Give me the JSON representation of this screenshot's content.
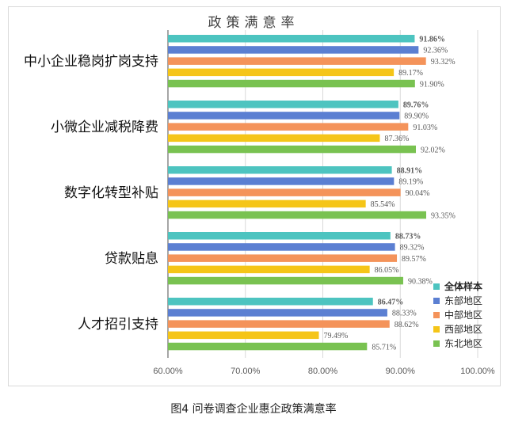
{
  "caption": "图4  问卷调查企业惠企政策满意率",
  "chart_data": {
    "type": "bar",
    "orientation": "horizontal",
    "title": "政策满意率",
    "categories": [
      "中小企业稳岗扩岗支持",
      "小微企业减税降费",
      "数字化转型补贴",
      "贷款贴息",
      "人才招引支持"
    ],
    "series": [
      {
        "name": "全体样本",
        "color": "#4dc4c0",
        "values": [
          91.86,
          89.76,
          88.91,
          88.73,
          86.47
        ],
        "labels": [
          "91.86%",
          "89.76%",
          "88.91%",
          "88.73%",
          "86.47%"
        ]
      },
      {
        "name": "东部地区",
        "color": "#5b7fd2",
        "values": [
          92.36,
          89.9,
          89.19,
          89.32,
          88.33
        ],
        "labels": [
          "92.36%",
          "89.90%",
          "89.19%",
          "89.32%",
          "88.33%"
        ]
      },
      {
        "name": "中部地区",
        "color": "#f4935a",
        "values": [
          93.32,
          91.03,
          90.04,
          89.57,
          88.62
        ],
        "labels": [
          "93.32%",
          "91.03%",
          "90.04%",
          "89.57%",
          "88.62%"
        ]
      },
      {
        "name": "西部地区",
        "color": "#f5c518",
        "values": [
          89.17,
          87.36,
          85.54,
          86.05,
          79.49
        ],
        "labels": [
          "89.17%",
          "87.36%",
          "85.54%",
          "86.05%",
          "79.49%"
        ]
      },
      {
        "name": "东北地区",
        "color": "#79c251",
        "values": [
          91.9,
          92.02,
          93.35,
          90.38,
          85.71
        ],
        "labels": [
          "91.90%",
          "92.02%",
          "93.35%",
          "90.38%",
          "85.71%"
        ]
      }
    ],
    "xlim": [
      60,
      100
    ],
    "xticks": [
      60,
      70,
      80,
      90,
      100
    ],
    "xtick_labels": [
      "60.00%",
      "70.00%",
      "80.00%",
      "90.00%",
      "100.00%"
    ],
    "grid": true,
    "legend": "right"
  }
}
